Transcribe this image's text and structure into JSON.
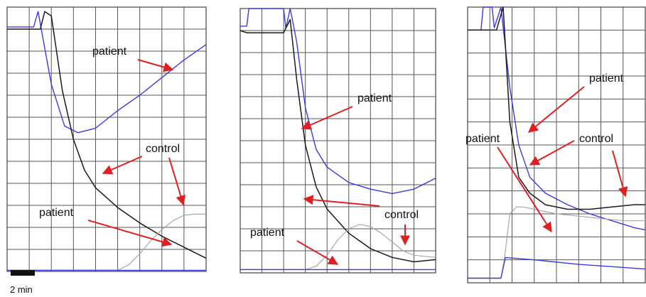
{
  "colors": {
    "patient_trace": "#3a3ae0",
    "control_trace": "#1a1a1a",
    "reference_trace": "#a8a8a8",
    "arrow": "#e02020",
    "grid": "#555555"
  },
  "scale_bar": {
    "label": "2 min",
    "minutes": 2
  },
  "annotations": {
    "p1": [
      "patient",
      "control",
      "patient"
    ],
    "p2": [
      "patient",
      "control",
      "patient"
    ],
    "p3": [
      "patient",
      "patient",
      "control"
    ]
  },
  "chart_data": [
    {
      "type": "line",
      "title": "",
      "xlabel": "",
      "ylabel": "",
      "grid": true,
      "x_divisions": 9,
      "y_divisions": 12,
      "xlim": [
        0,
        9
      ],
      "ylim": [
        0,
        12
      ],
      "series": [
        {
          "color": "patient",
          "x": [
            0,
            1.2,
            1.4,
            2.0,
            2.6,
            3.2,
            4.0,
            5.0,
            6.0,
            7.0,
            8.0,
            9.0
          ],
          "y": [
            11.1,
            11.1,
            11.8,
            8.5,
            6.6,
            6.3,
            6.5,
            7.3,
            8.0,
            8.8,
            9.6,
            10.3
          ]
        },
        {
          "color": "control",
          "x": [
            0,
            1.5,
            1.7,
            2.0,
            2.5,
            3.0,
            3.5,
            4.0,
            5.0,
            6.0,
            7.0,
            8.0,
            9.0
          ],
          "y": [
            11.0,
            11.0,
            11.8,
            11.6,
            8.2,
            6.0,
            4.6,
            3.8,
            2.9,
            2.2,
            1.6,
            1.1,
            0.6
          ]
        },
        {
          "color": "reference",
          "x": [
            0,
            5.0,
            5.5,
            6.0,
            6.5,
            7.0,
            7.5,
            8.0,
            8.5,
            9.0
          ],
          "y": [
            0.05,
            0.05,
            0.3,
            0.8,
            1.4,
            1.9,
            2.3,
            2.55,
            2.6,
            2.6
          ]
        },
        {
          "color": "patient",
          "x": [
            0,
            9.0
          ],
          "y": [
            0.05,
            0.05
          ]
        }
      ]
    },
    {
      "type": "line",
      "title": "",
      "xlabel": "",
      "ylabel": "",
      "grid": true,
      "x_divisions": 9,
      "y_divisions": 12,
      "xlim": [
        0,
        9
      ],
      "ylim": [
        0,
        12
      ],
      "series": [
        {
          "color": "patient",
          "x": [
            0,
            0.3,
            0.4,
            2.0,
            2.1,
            2.3,
            2.6,
            3.0,
            3.5,
            4.0,
            5.0,
            6.0,
            7.0,
            8.0,
            9.0
          ],
          "y": [
            11.2,
            11.2,
            12.0,
            12.0,
            11.1,
            12.0,
            10.5,
            7.5,
            5.6,
            4.8,
            4.1,
            3.8,
            3.6,
            3.8,
            4.3
          ]
        },
        {
          "color": "control",
          "x": [
            0,
            0.3,
            2.0,
            2.3,
            2.6,
            3.0,
            3.5,
            4.0,
            5.0,
            6.0,
            7.0,
            8.0,
            9.0
          ],
          "y": [
            11.0,
            10.9,
            10.9,
            11.5,
            8.8,
            5.8,
            3.9,
            2.9,
            1.8,
            1.1,
            0.7,
            0.5,
            0.6
          ]
        },
        {
          "color": "reference",
          "x": [
            0,
            3.0,
            3.5,
            4.0,
            4.5,
            5.0,
            5.5,
            6.0,
            6.5,
            7.0,
            7.5,
            8.0,
            9.0
          ],
          "y": [
            0.15,
            0.15,
            0.3,
            0.8,
            1.5,
            2.0,
            2.2,
            2.1,
            1.8,
            1.4,
            1.0,
            0.8,
            0.7
          ]
        },
        {
          "color": "patient",
          "x": [
            0,
            9.0
          ],
          "y": [
            0.15,
            0.15
          ]
        }
      ]
    },
    {
      "type": "line",
      "title": "",
      "xlabel": "",
      "ylabel": "",
      "grid": true,
      "x_divisions": 8,
      "y_divisions": 12,
      "xlim": [
        0,
        8
      ],
      "ylim": [
        0,
        12
      ],
      "series": [
        {
          "color": "patient",
          "x": [
            0,
            0.6,
            0.7,
            1.1,
            1.2,
            1.5,
            1.9,
            2.3,
            2.8,
            3.5,
            4.5,
            5.5,
            6.5,
            7.5,
            8.0
          ],
          "y": [
            11.0,
            11.0,
            12.0,
            12.0,
            11.1,
            12.0,
            8.5,
            6.0,
            4.6,
            3.9,
            3.4,
            3.0,
            2.7,
            2.4,
            2.3
          ]
        },
        {
          "color": "control",
          "x": [
            0,
            0.6,
            1.3,
            1.6,
            1.9,
            2.3,
            2.8,
            3.5,
            4.5,
            5.5,
            6.5,
            7.5,
            8.0
          ],
          "y": [
            11.0,
            11.0,
            11.0,
            12.0,
            7.0,
            4.6,
            3.9,
            3.4,
            3.2,
            3.2,
            3.3,
            3.4,
            3.4
          ]
        },
        {
          "color": "reference",
          "x": [
            0,
            1.5,
            1.65,
            1.9,
            2.2,
            2.5,
            3.0,
            4.0,
            5.0,
            6.0,
            7.0,
            8.0
          ],
          "y": [
            0.2,
            0.2,
            1.0,
            3.0,
            3.3,
            3.3,
            3.2,
            3.0,
            2.9,
            2.8,
            2.7,
            2.7
          ]
        },
        {
          "color": "patient",
          "x": [
            0,
            1.5,
            1.7,
            3.0,
            5.0,
            8.0
          ],
          "y": [
            0.2,
            0.2,
            1.1,
            1.0,
            0.8,
            0.6
          ]
        }
      ]
    }
  ]
}
